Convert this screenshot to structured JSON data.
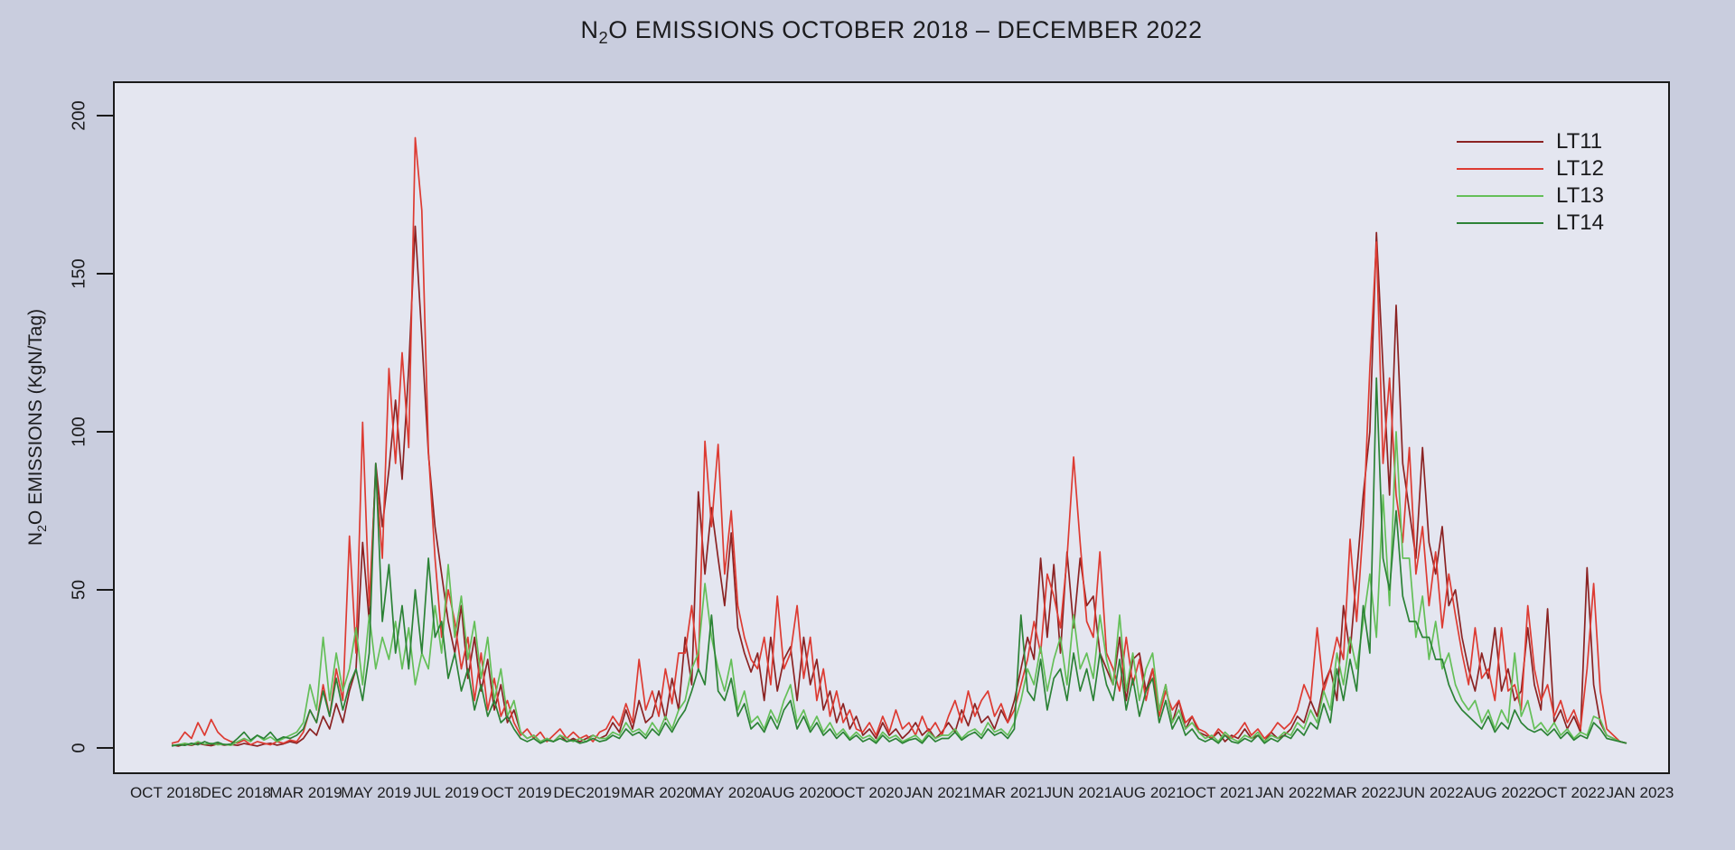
{
  "chart_data": {
    "type": "line",
    "title": {
      "prefix": "N",
      "sub": "2",
      "rest": "O EMISSIONS OCTOBER 2018 – DECEMBER 2022"
    },
    "ylabel": {
      "prefix": "N",
      "sub": "2",
      "rest": "O EMISSIONS (KgN/Tag)"
    },
    "y_ticks": [
      0,
      50,
      100,
      150,
      200
    ],
    "ylim": [
      0,
      210
    ],
    "grid": false,
    "legend_position": "top-right",
    "x_range_text": "OCT 2018 to JAN 2023, weekly resolution",
    "x_tick_labels": [
      "OCT 2018",
      "DEC 2018",
      "MAR 2019",
      "MAY 2019",
      "JUL 2019",
      "OCT 2019",
      "DEC2019",
      "MAR 2020",
      "MAY 2020",
      "AUG 2020",
      "OCT 2020",
      "JAN 2021",
      "MAR 2021",
      "JUN 2021",
      "AUG 2021",
      "OCT 2021",
      "JAN 2022",
      "MAR 2022",
      "JUN 2022",
      "AUG 2022",
      "OCT 2022",
      "JAN 2023"
    ],
    "colors": {
      "outer_background": "#c9cdde",
      "plot_background": "#e4e6f0",
      "axis": "#1a1a1a",
      "text": "#1c1c1e"
    },
    "series": [
      {
        "name": "LT11",
        "color": "#8b2323",
        "values": [
          1,
          0.6,
          1.2,
          0.8,
          1.5,
          1,
          0.7,
          1.3,
          0.9,
          1.1,
          0.8,
          1.4,
          1,
          0.6,
          1.2,
          1.5,
          0.9,
          1.3,
          2,
          1.5,
          3,
          6,
          4,
          10,
          6,
          14,
          8,
          18,
          25,
          65,
          40,
          90,
          70,
          88,
          110,
          85,
          120,
          165,
          130,
          93,
          70,
          55,
          40,
          30,
          45,
          22,
          35,
          18,
          28,
          12,
          20,
          8,
          12,
          5,
          3,
          4,
          2,
          3,
          2,
          4,
          2,
          3,
          2,
          3,
          4,
          3,
          4,
          8,
          5,
          12,
          6,
          15,
          8,
          10,
          18,
          9,
          22,
          12,
          35,
          20,
          81,
          55,
          76,
          60,
          45,
          68,
          38,
          30,
          24,
          30,
          15,
          35,
          18,
          28,
          32,
          15,
          35,
          20,
          28,
          12,
          18,
          8,
          14,
          6,
          10,
          4,
          6,
          3,
          8,
          4,
          6,
          3,
          5,
          8,
          4,
          6,
          3,
          5,
          8,
          5,
          12,
          7,
          14,
          8,
          10,
          6,
          12,
          8,
          15,
          25,
          35,
          28,
          60,
          35,
          58,
          30,
          62,
          38,
          60,
          45,
          48,
          30,
          25,
          20,
          35,
          15,
          28,
          30,
          18,
          25,
          12,
          20,
          8,
          15,
          6,
          10,
          5,
          4,
          3,
          5,
          2,
          4,
          3,
          6,
          3,
          4,
          2,
          5,
          3,
          4,
          6,
          10,
          8,
          15,
          10,
          20,
          25,
          15,
          45,
          30,
          55,
          80,
          100,
          163,
          120,
          80,
          140,
          90,
          75,
          60,
          95,
          65,
          55,
          70,
          45,
          50,
          35,
          25,
          18,
          30,
          22,
          38,
          18,
          25,
          15,
          18,
          38,
          20,
          12,
          44,
          8,
          12,
          6,
          10,
          5,
          57,
          20,
          8,
          4,
          3,
          2,
          1.5
        ]
      },
      {
        "name": "LT12",
        "color": "#dd3b32",
        "values": [
          1.5,
          2,
          5,
          3,
          8,
          4,
          9,
          5,
          3,
          2,
          1.5,
          2.5,
          1,
          2,
          1.5,
          1,
          2,
          1.5,
          2.5,
          2,
          5,
          12,
          8,
          20,
          10,
          25,
          15,
          67,
          30,
          103,
          45,
          88,
          60,
          120,
          90,
          125,
          95,
          193,
          170,
          94,
          60,
          35,
          50,
          40,
          25,
          35,
          15,
          30,
          12,
          22,
          10,
          15,
          8,
          4,
          6,
          3,
          5,
          2,
          4,
          6,
          3,
          5,
          3,
          4,
          2,
          5,
          6,
          10,
          7,
          14,
          8,
          28,
          12,
          18,
          10,
          25,
          14,
          30,
          30,
          45,
          25,
          97,
          70,
          96,
          55,
          75,
          45,
          35,
          28,
          25,
          35,
          20,
          48,
          25,
          30,
          45,
          22,
          35,
          15,
          25,
          10,
          18,
          8,
          12,
          6,
          5,
          8,
          4,
          10,
          5,
          12,
          6,
          8,
          4,
          10,
          5,
          8,
          4,
          10,
          15,
          8,
          18,
          10,
          15,
          18,
          10,
          14,
          8,
          12,
          20,
          28,
          40,
          30,
          55,
          48,
          38,
          60,
          92,
          65,
          40,
          35,
          62,
          30,
          25,
          18,
          35,
          20,
          28,
          15,
          25,
          10,
          18,
          12,
          15,
          8,
          10,
          6,
          5,
          3,
          6,
          4,
          3,
          5,
          8,
          4,
          6,
          3,
          5,
          8,
          6,
          8,
          12,
          20,
          15,
          38,
          18,
          25,
          35,
          28,
          66,
          40,
          70,
          120,
          160,
          90,
          117,
          80,
          65,
          95,
          55,
          70,
          45,
          62,
          38,
          55,
          42,
          30,
          20,
          38,
          22,
          25,
          15,
          38,
          18,
          20,
          12,
          45,
          25,
          15,
          20,
          10,
          15,
          8,
          12,
          6,
          25,
          52,
          18,
          6,
          4,
          2,
          1.5
        ]
      },
      {
        "name": "LT13",
        "color": "#64bf58",
        "values": [
          0.8,
          1,
          1.5,
          1,
          2,
          1.2,
          1.5,
          1,
          1.2,
          0.8,
          2,
          3,
          2,
          4,
          2.5,
          3.5,
          2,
          3,
          4,
          5,
          8,
          20,
          12,
          35,
          15,
          30,
          18,
          25,
          38,
          20,
          42,
          25,
          35,
          28,
          40,
          25,
          38,
          20,
          30,
          25,
          45,
          30,
          58,
          35,
          48,
          28,
          40,
          22,
          35,
          15,
          25,
          10,
          15,
          5,
          3,
          4,
          2,
          3,
          2,
          4,
          3,
          2,
          3,
          2,
          4,
          3,
          3,
          5,
          4,
          8,
          5,
          6,
          4,
          8,
          5,
          10,
          6,
          12,
          15,
          25,
          30,
          52,
          35,
          25,
          18,
          28,
          12,
          18,
          8,
          10,
          6,
          12,
          8,
          15,
          20,
          8,
          12,
          6,
          10,
          5,
          8,
          4,
          6,
          3,
          5,
          3,
          4,
          2,
          5,
          3,
          4,
          2,
          3,
          4,
          2,
          5,
          3,
          4,
          4,
          6,
          3,
          5,
          6,
          4,
          8,
          5,
          6,
          4,
          8,
          15,
          25,
          20,
          32,
          18,
          28,
          35,
          20,
          42,
          25,
          30,
          22,
          42,
          28,
          20,
          42,
          18,
          30,
          15,
          25,
          30,
          12,
          20,
          8,
          12,
          6,
          8,
          5,
          3,
          4,
          2,
          5,
          3,
          2,
          4,
          3,
          5,
          2,
          4,
          3,
          5,
          4,
          8,
          6,
          12,
          8,
          18,
          12,
          30,
          20,
          35,
          25,
          40,
          55,
          35,
          80,
          45,
          100,
          60,
          60,
          35,
          48,
          28,
          40,
          25,
          30,
          20,
          15,
          12,
          15,
          8,
          12,
          6,
          12,
          8,
          30,
          10,
          15,
          6,
          8,
          5,
          8,
          4,
          6,
          3,
          5,
          4,
          10,
          9,
          4,
          3,
          2,
          1.5
        ]
      },
      {
        "name": "LT14",
        "color": "#2c8236",
        "values": [
          0.6,
          1,
          0.8,
          1.5,
          1,
          2,
          1.2,
          1.8,
          1,
          1.2,
          3,
          5,
          2.5,
          4,
          3,
          5,
          2.5,
          3.5,
          3,
          4,
          6,
          12,
          8,
          18,
          10,
          22,
          12,
          20,
          25,
          15,
          30,
          90,
          40,
          58,
          30,
          45,
          25,
          50,
          30,
          60,
          35,
          40,
          22,
          30,
          18,
          25,
          12,
          20,
          10,
          15,
          8,
          10,
          6,
          3,
          2,
          3,
          1.5,
          2.5,
          2,
          3,
          2,
          2.5,
          1.5,
          2,
          3,
          2,
          2.5,
          4,
          3,
          6,
          4,
          5,
          3,
          6,
          4,
          8,
          5,
          9,
          12,
          18,
          25,
          20,
          42,
          18,
          15,
          22,
          10,
          14,
          6,
          8,
          5,
          10,
          6,
          12,
          15,
          6,
          10,
          5,
          8,
          4,
          6,
          3,
          5,
          2.5,
          4,
          2,
          3,
          1.5,
          4,
          2,
          3,
          1.5,
          2.5,
          3,
          1.5,
          4,
          2,
          3,
          3,
          5,
          2.5,
          4,
          5,
          3,
          6,
          4,
          5,
          3,
          6,
          42,
          18,
          15,
          28,
          12,
          22,
          25,
          15,
          30,
          18,
          25,
          15,
          30,
          20,
          15,
          28,
          12,
          22,
          10,
          18,
          22,
          8,
          15,
          6,
          10,
          4,
          6,
          3,
          2,
          3,
          1.5,
          4,
          2,
          1.5,
          3,
          2,
          4,
          1.5,
          3,
          2,
          4,
          3,
          6,
          4,
          8,
          6,
          14,
          8,
          25,
          15,
          28,
          18,
          45,
          30,
          117,
          60,
          50,
          75,
          48,
          40,
          40,
          35,
          35,
          28,
          28,
          20,
          15,
          12,
          10,
          8,
          6,
          10,
          5,
          8,
          6,
          12,
          8,
          6,
          5,
          6,
          4,
          6,
          3,
          5,
          2.5,
          4,
          3,
          8,
          6,
          3,
          2.5,
          2,
          1.5
        ]
      }
    ]
  }
}
